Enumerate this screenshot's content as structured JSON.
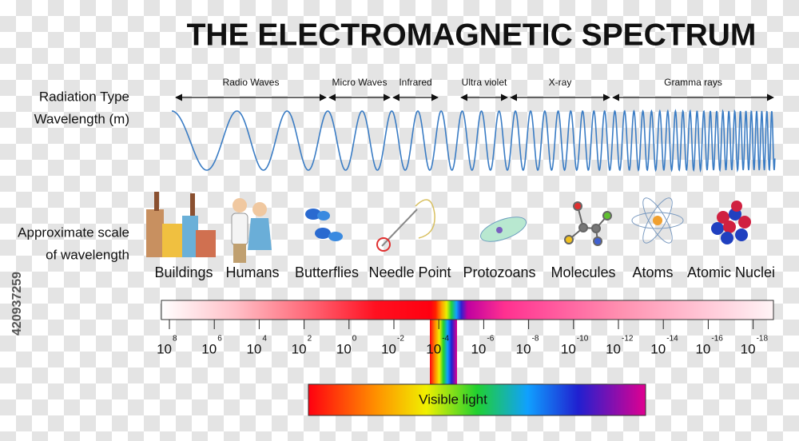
{
  "title": "THE ELECTROMAGNETIC SPECTRUM",
  "row_labels": {
    "radiation_type": "Radiation Type",
    "wavelength": "Wavelength (m)",
    "scale_line1": "Approximate scale",
    "scale_line2": "of wavelength"
  },
  "bands": [
    "Radio Waves",
    "Micro Waves",
    "Infrared",
    "Ultra violet",
    "X-ray",
    "Gramma rays"
  ],
  "objects": [
    "Buildings",
    "Humans",
    "Butterflies",
    "Needle Point",
    "Protozoans",
    "Molecules",
    "Atoms",
    "Atomic Nuclei"
  ],
  "scale_ticks": [
    {
      "base": "10",
      "exponent": "8"
    },
    {
      "base": "10",
      "exponent": "6"
    },
    {
      "base": "10",
      "exponent": "4"
    },
    {
      "base": "10",
      "exponent": "2"
    },
    {
      "base": "10",
      "exponent": "0"
    },
    {
      "base": "10",
      "exponent": "-2"
    },
    {
      "base": "10",
      "exponent": "-4"
    },
    {
      "base": "10",
      "exponent": "-6"
    },
    {
      "base": "10",
      "exponent": "-8"
    },
    {
      "base": "10",
      "exponent": "-10"
    },
    {
      "base": "10",
      "exponent": "-12"
    },
    {
      "base": "10",
      "exponent": "-14"
    },
    {
      "base": "10",
      "exponent": "-16"
    },
    {
      "base": "10",
      "exponent": "-18"
    }
  ],
  "visible_light": "Visible light",
  "watermark": "420937259"
}
